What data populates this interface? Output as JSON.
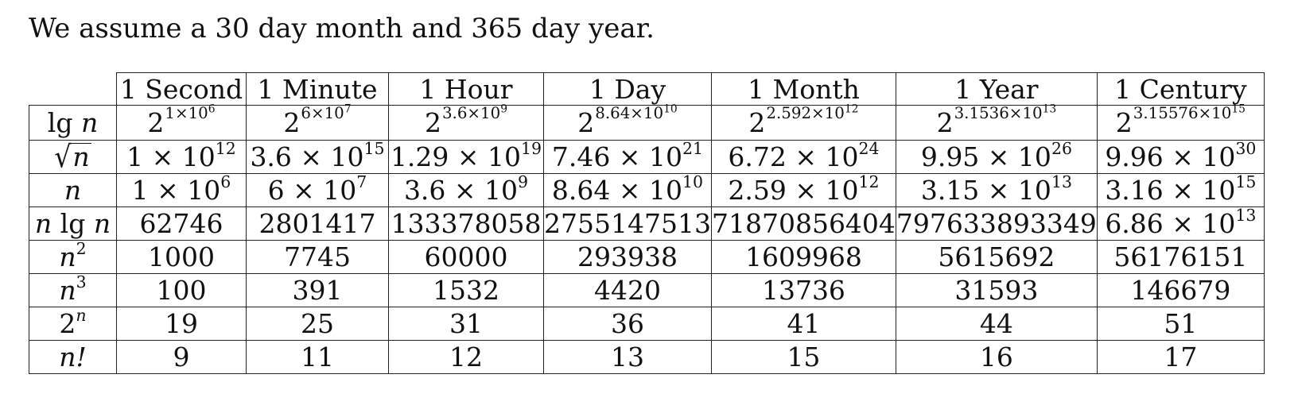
{
  "intro_text": "We assume a 30 day month and 365 day year.",
  "table": {
    "columns": [
      "1 Second",
      "1 Minute",
      "1 Hour",
      "1 Day",
      "1 Month",
      "1 Year",
      "1 Century"
    ],
    "rows": [
      {
        "label": "lg n",
        "kind": "power2",
        "cells": [
          "1×10^6",
          "6×10^7",
          "3.6×10^9",
          "8.64×10^10",
          "2.592×10^12",
          "3.1536×10^13",
          "3.15576×10^15"
        ],
        "mantissas": [
          "1×10",
          "6×10",
          "3.6×10",
          "8.64×10",
          "2.592×10",
          "3.1536×10",
          "3.15576×10"
        ],
        "exponents": [
          "6",
          "7",
          "9",
          "10",
          "12",
          "13",
          "15"
        ]
      },
      {
        "label": "√n",
        "kind": "sci",
        "mantissas": [
          "1 × 10",
          "3.6 × 10",
          "1.29 × 10",
          "7.46 × 10",
          "6.72 × 10",
          "9.95 × 10",
          "9.96 × 10"
        ],
        "exponents": [
          "12",
          "15",
          "19",
          "21",
          "24",
          "26",
          "30"
        ]
      },
      {
        "label": "n",
        "kind": "sci",
        "mantissas": [
          "1 × 10",
          "6 × 10",
          "3.6 × 10",
          "8.64 × 10",
          "2.59 × 10",
          "3.15 × 10",
          "3.16 × 10"
        ],
        "exponents": [
          "6",
          "7",
          "9",
          "10",
          "12",
          "13",
          "15"
        ]
      },
      {
        "label": "n lg n",
        "kind": "plain",
        "cells": [
          "62746",
          "2801417",
          "133378058",
          "2755147513",
          "71870856404",
          "797633893349",
          ""
        ],
        "last_mantissa": "6.86 × 10",
        "last_exponent": "13"
      },
      {
        "label": "n2",
        "label_base": "n",
        "label_exp": "2",
        "kind": "plain",
        "cells": [
          "1000",
          "7745",
          "60000",
          "293938",
          "1609968",
          "5615692",
          "56176151"
        ]
      },
      {
        "label": "n3",
        "label_base": "n",
        "label_exp": "3",
        "kind": "plain",
        "cells": [
          "100",
          "391",
          "1532",
          "4420",
          "13736",
          "31593",
          "146679"
        ]
      },
      {
        "label": "2n",
        "label_base": "2",
        "label_exp": "n",
        "kind": "plain",
        "cells": [
          "19",
          "25",
          "31",
          "36",
          "41",
          "44",
          "51"
        ]
      },
      {
        "label": "n!",
        "kind": "plain",
        "cells": [
          "9",
          "11",
          "12",
          "13",
          "15",
          "16",
          "17"
        ]
      }
    ]
  }
}
